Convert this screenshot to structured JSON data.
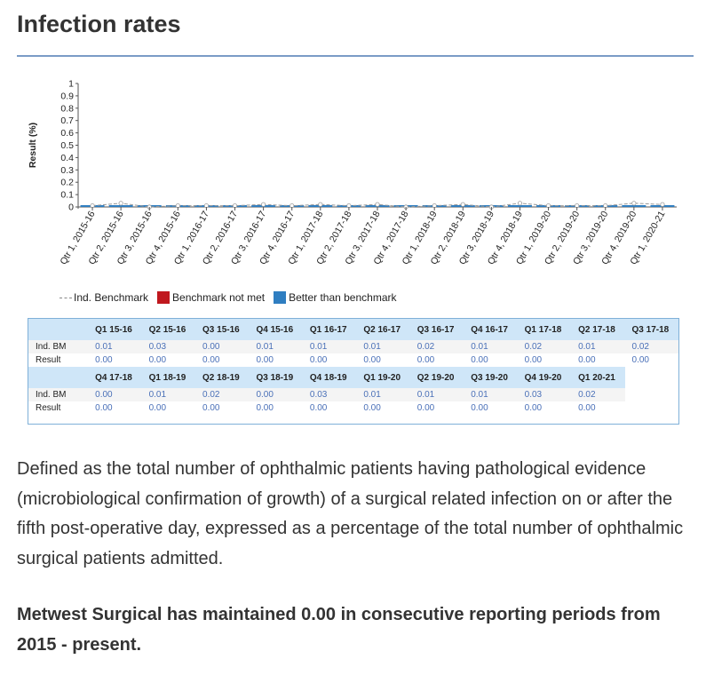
{
  "page": {
    "title": "Infection rates",
    "description": "Defined as the total number of ophthalmic patients having pathological evidence (microbiological confirmation of growth) of a surgical related infection on or after the fifth post-operative day, expressed as a percentage of the total number of ophthalmic surgical patients admitted.",
    "note": "Metwest Surgical has maintained 0.00 in consecutive reporting periods from 2015 - present."
  },
  "chart_data": {
    "type": "line",
    "ylabel": "Result (%)",
    "xlabel": "",
    "ylim": [
      0,
      1
    ],
    "yticks": [
      "0",
      "0.1",
      "0.2",
      "0.3",
      "0.4",
      "0.5",
      "0.6",
      "0.7",
      "0.8",
      "0.9",
      "1"
    ],
    "categories": [
      "Qtr 1, 2015-16",
      "Qtr 2, 2015-16",
      "Qtr 3, 2015-16",
      "Qtr 4, 2015-16",
      "Qtr 1, 2016-17",
      "Qtr 2, 2016-17",
      "Qtr 3, 2016-17",
      "Qtr 4, 2016-17",
      "Qtr 1, 2017-18",
      "Qtr 2, 2017-18",
      "Qtr 3, 2017-18",
      "Qtr 4, 2017-18",
      "Qtr 1, 2018-19",
      "Qtr 2, 2018-19",
      "Qtr 3, 2018-19",
      "Qtr 4, 2018-19",
      "Qtr 1, 2019-20",
      "Qtr 2, 2019-20",
      "Qtr 3, 2019-20",
      "Qtr 4, 2019-20",
      "Qtr 1, 2020-21"
    ],
    "series": [
      {
        "name": "Ind. Benchmark",
        "values": [
          0.01,
          0.03,
          0.0,
          0.01,
          0.01,
          0.01,
          0.02,
          0.01,
          0.02,
          0.01,
          0.02,
          0.0,
          0.01,
          0.02,
          0.0,
          0.03,
          0.01,
          0.01,
          0.01,
          0.03,
          0.02
        ]
      },
      {
        "name": "Result",
        "values": [
          0.0,
          0.0,
          0.0,
          0.0,
          0.0,
          0.0,
          0.0,
          0.0,
          0.0,
          0.0,
          0.0,
          0.0,
          0.0,
          0.0,
          0.0,
          0.0,
          0.0,
          0.0,
          0.0,
          0.0,
          0.0
        ]
      }
    ],
    "legend": [
      {
        "label": "Ind. Benchmark",
        "kind": "line",
        "color": "#888888"
      },
      {
        "label": "Benchmark not met",
        "kind": "box",
        "color": "#c0181e"
      },
      {
        "label": "Better than benchmark",
        "kind": "box",
        "color": "#2f7ec1"
      }
    ],
    "legend_position": "bottom-left",
    "bar_color": "#2f7ec1",
    "grid": false
  },
  "table": {
    "row_labels": [
      "Ind. BM",
      "Result"
    ],
    "blocks": [
      {
        "headers": [
          "Q1 15-16",
          "Q2 15-16",
          "Q3 15-16",
          "Q4 15-16",
          "Q1 16-17",
          "Q2 16-17",
          "Q3 16-17",
          "Q4 16-17",
          "Q1 17-18",
          "Q2 17-18",
          "Q3 17-18"
        ],
        "ind_bm": [
          "0.01",
          "0.03",
          "0.00",
          "0.01",
          "0.01",
          "0.01",
          "0.02",
          "0.01",
          "0.02",
          "0.01",
          "0.02"
        ],
        "result": [
          "0.00",
          "0.00",
          "0.00",
          "0.00",
          "0.00",
          "0.00",
          "0.00",
          "0.00",
          "0.00",
          "0.00",
          "0.00"
        ]
      },
      {
        "headers": [
          "Q4 17-18",
          "Q1 18-19",
          "Q2 18-19",
          "Q3 18-19",
          "Q4 18-19",
          "Q1 19-20",
          "Q2 19-20",
          "Q3 19-20",
          "Q4 19-20",
          "Q1 20-21"
        ],
        "ind_bm": [
          "0.00",
          "0.01",
          "0.02",
          "0.00",
          "0.03",
          "0.01",
          "0.01",
          "0.01",
          "0.03",
          "0.02"
        ],
        "result": [
          "0.00",
          "0.00",
          "0.00",
          "0.00",
          "0.00",
          "0.00",
          "0.00",
          "0.00",
          "0.00",
          "0.00"
        ]
      }
    ]
  }
}
